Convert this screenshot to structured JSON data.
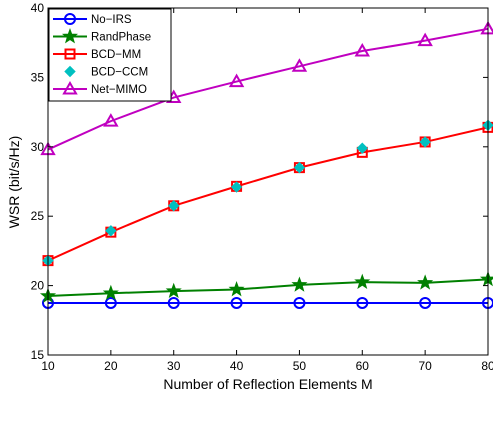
{
  "chart_data": {
    "type": "line",
    "xlabel": "Number of Reflection Elements M",
    "ylabel": "WSR (bit/s/Hz)",
    "xlim": [
      10,
      80
    ],
    "ylim": [
      15,
      40
    ],
    "xticks": [
      "10",
      "20",
      "30",
      "40",
      "50",
      "60",
      "70",
      "80"
    ],
    "yticks": [
      "15",
      "20",
      "25",
      "30",
      "35",
      "40"
    ],
    "grid": false,
    "legend_position": "top-left",
    "x": [
      10,
      20,
      30,
      40,
      50,
      60,
      70,
      80
    ],
    "series": [
      {
        "name": "No−IRS",
        "color": "#0000ff",
        "marker": "circle",
        "line": true,
        "values": [
          18.75,
          18.75,
          18.75,
          18.75,
          18.75,
          18.75,
          18.75,
          18.75
        ]
      },
      {
        "name": "RandPhase",
        "color": "#008000",
        "marker": "star",
        "line": true,
        "values": [
          19.25,
          19.45,
          19.6,
          19.72,
          20.05,
          20.25,
          20.2,
          20.45
        ]
      },
      {
        "name": "BCD−MM",
        "color": "#ff0000",
        "marker": "square",
        "line": true,
        "values": [
          21.8,
          23.85,
          25.75,
          27.15,
          28.5,
          29.6,
          30.35,
          31.4
        ]
      },
      {
        "name": "BCD−CCM",
        "color": "#00c0c0",
        "marker": "diamond",
        "line": false,
        "values": [
          21.8,
          23.95,
          25.75,
          27.1,
          28.5,
          29.9,
          30.35,
          31.55
        ]
      },
      {
        "name": "Net−MIMO",
        "color": "#c000c0",
        "marker": "triangle",
        "line": true,
        "values": [
          29.8,
          31.85,
          33.55,
          34.7,
          35.8,
          36.9,
          37.65,
          38.5
        ]
      }
    ]
  }
}
